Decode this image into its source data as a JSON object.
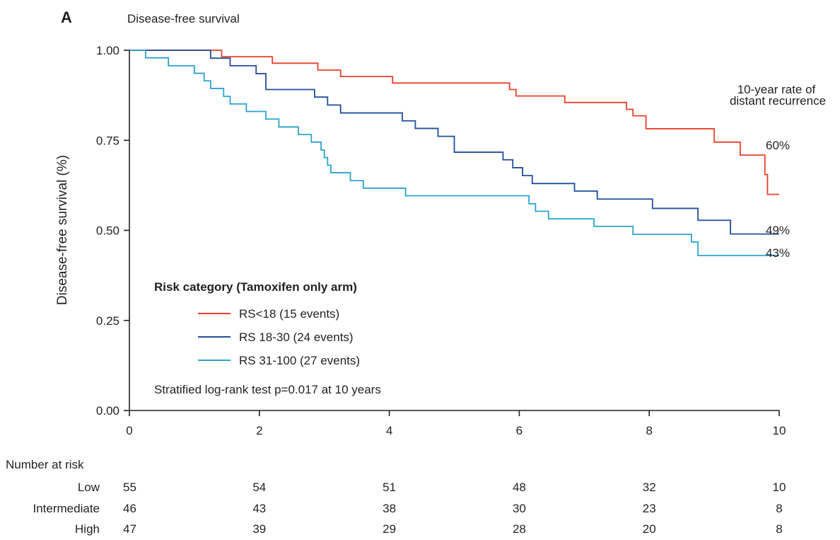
{
  "chart_data": {
    "type": "line",
    "panel_label": "A",
    "title": "Disease-free survival",
    "xlabel": "",
    "ylabel": "Disease-free survival (%)",
    "xlim": [
      0,
      10
    ],
    "ylim": [
      0,
      1
    ],
    "x_ticks": [
      "0",
      "2",
      "4",
      "6",
      "8",
      "10"
    ],
    "y_ticks": [
      "0.00",
      "0.25",
      "0.50",
      "0.75",
      "1.00"
    ],
    "grid": false,
    "step": true,
    "end_label_heading": [
      "10-year rate of",
      "distant recurrence"
    ],
    "legend": {
      "title": "Risk category (Tamoxifen only arm)",
      "placement": "lower-left"
    },
    "annotation": "Stratified log-rank test p=0.017 at 10 years",
    "series": [
      {
        "name": "RS<18 (15 events)",
        "color": "#e8402a",
        "end_label": "60%",
        "x": [
          0,
          1.42,
          2.2,
          2.9,
          3.25,
          4.05,
          5.85,
          5.95,
          6.7,
          7.65,
          7.75,
          7.95,
          9.0,
          9.4,
          9.78,
          9.82,
          10
        ],
        "y": [
          1.0,
          0.982,
          0.964,
          0.945,
          0.927,
          0.909,
          0.891,
          0.873,
          0.855,
          0.836,
          0.818,
          0.782,
          0.745,
          0.709,
          0.655,
          0.6,
          0.6
        ]
      },
      {
        "name": "RS 18-30 (24 events)",
        "color": "#1f4e9a",
        "end_label": "49%",
        "x": [
          0,
          1.25,
          1.55,
          1.95,
          2.1,
          2.85,
          3.05,
          3.25,
          4.2,
          4.4,
          4.75,
          5.0,
          5.75,
          5.9,
          6.05,
          6.2,
          6.85,
          7.2,
          8.05,
          8.75,
          9.25,
          10
        ],
        "y": [
          1.0,
          0.978,
          0.957,
          0.935,
          0.891,
          0.87,
          0.848,
          0.826,
          0.804,
          0.783,
          0.761,
          0.717,
          0.696,
          0.674,
          0.652,
          0.63,
          0.609,
          0.587,
          0.561,
          0.528,
          0.49,
          0.49
        ]
      },
      {
        "name": "RS 31-100 (27 events)",
        "color": "#2ba3cf",
        "end_label": "43%",
        "x": [
          0,
          0.25,
          0.6,
          1.0,
          1.15,
          1.25,
          1.45,
          1.55,
          1.8,
          2.1,
          2.3,
          2.6,
          2.8,
          2.95,
          3.0,
          3.05,
          3.1,
          3.4,
          3.6,
          4.25,
          6.15,
          6.25,
          6.45,
          7.15,
          7.75,
          8.65,
          8.75,
          10
        ],
        "y": [
          1.0,
          0.979,
          0.957,
          0.936,
          0.915,
          0.894,
          0.872,
          0.851,
          0.83,
          0.809,
          0.787,
          0.766,
          0.745,
          0.723,
          0.702,
          0.681,
          0.66,
          0.638,
          0.617,
          0.596,
          0.574,
          0.553,
          0.532,
          0.511,
          0.489,
          0.468,
          0.43,
          0.43
        ]
      }
    ],
    "risk_table": {
      "title": "Number at risk",
      "times": [
        0,
        2,
        4,
        6,
        8,
        10
      ],
      "rows": [
        {
          "label": "Low",
          "values": [
            "55",
            "54",
            "51",
            "48",
            "32",
            "10"
          ]
        },
        {
          "label": "Intermediate",
          "values": [
            "46",
            "43",
            "38",
            "30",
            "23",
            "8"
          ]
        },
        {
          "label": "High",
          "values": [
            "47",
            "39",
            "29",
            "28",
            "20",
            "8"
          ]
        }
      ]
    }
  }
}
